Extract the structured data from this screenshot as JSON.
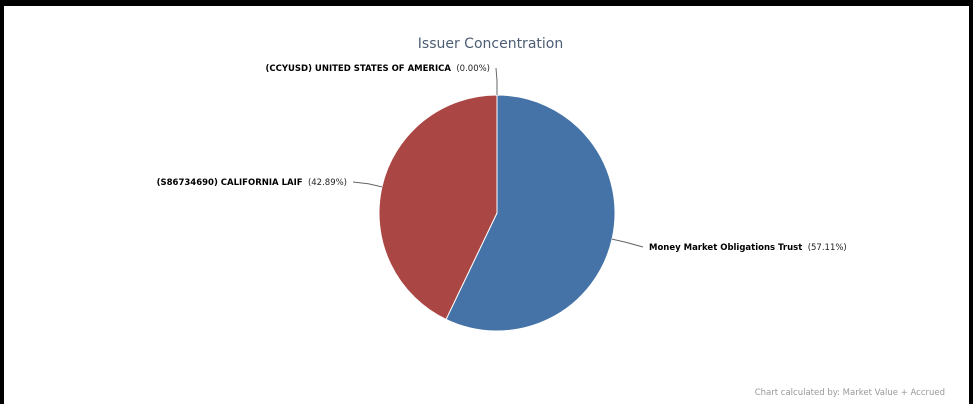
{
  "chart_data": {
    "type": "pie",
    "title": "Issuer Concentration",
    "slices": [
      {
        "name": "Money Market Obligations Trust",
        "label": "Money Market Obligations Trust",
        "value": 57.11,
        "pct_label": "(57.11%)",
        "color": "#4572a7"
      },
      {
        "name": "(S86734690) CALIFORNIA LAIF",
        "label": "(S86734690) CALIFORNIA LAIF",
        "value": 42.89,
        "pct_label": "(42.89%)",
        "color": "#aa4643"
      },
      {
        "name": "(CCYUSD) UNITED STATES OF AMERICA",
        "label": "(CCYUSD) UNITED STATES OF AMERICA",
        "value": 0.0,
        "pct_label": "(0.00%)",
        "color": "#89a54e"
      }
    ],
    "footnote": "Chart calculated by: Market Value + Accrued"
  }
}
